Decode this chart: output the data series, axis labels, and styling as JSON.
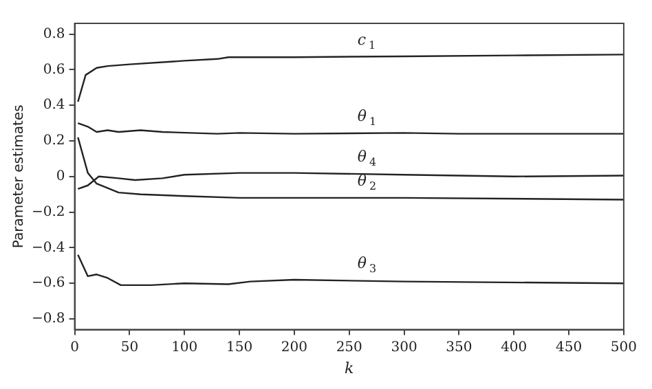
{
  "chart_data": {
    "type": "line",
    "xlabel": "k",
    "ylabel": "Parameter estimates",
    "xlim": [
      0,
      500
    ],
    "ylim": [
      -0.86,
      0.86
    ],
    "xticks": [
      0,
      50,
      100,
      150,
      200,
      250,
      300,
      350,
      400,
      450,
      500
    ],
    "yticks": [
      -0.8,
      -0.6,
      -0.4,
      -0.2,
      0,
      0.2,
      0.4,
      0.6,
      0.8
    ],
    "grid": false,
    "legend": false,
    "marker": "none",
    "line_style": "solid",
    "series": [
      {
        "name": "c$_{1}$",
        "color": "#222222",
        "x": [
          3,
          10,
          20,
          30,
          50,
          100,
          130,
          140,
          200,
          300,
          400,
          500
        ],
        "values": [
          0.42,
          0.57,
          0.61,
          0.62,
          0.63,
          0.65,
          0.66,
          0.67,
          0.67,
          0.675,
          0.68,
          0.685
        ]
      },
      {
        "name": "θ$_{1}$",
        "color": "#222222",
        "x": [
          3,
          12,
          20,
          30,
          40,
          60,
          80,
          130,
          150,
          200,
          300,
          350,
          500
        ],
        "values": [
          0.3,
          0.28,
          0.25,
          0.26,
          0.25,
          0.26,
          0.25,
          0.24,
          0.245,
          0.24,
          0.245,
          0.24,
          0.24
        ]
      },
      {
        "name": "θ$_{4}$",
        "color": "#222222",
        "x": [
          3,
          12,
          22,
          40,
          55,
          80,
          100,
          150,
          200,
          300,
          400,
          500
        ],
        "values": [
          -0.07,
          -0.05,
          0,
          -0.01,
          -0.02,
          -0.01,
          0.01,
          0.02,
          0.02,
          0.01,
          0,
          0.005
        ]
      },
      {
        "name": "θ$_{2}$",
        "color": "#222222",
        "x": [
          3,
          12,
          20,
          40,
          60,
          100,
          150,
          300,
          500
        ],
        "values": [
          0.22,
          0.02,
          -0.04,
          -0.09,
          -0.1,
          -0.11,
          -0.12,
          -0.12,
          -0.13
        ]
      },
      {
        "name": "θ$_{3}$",
        "color": "#222222",
        "x": [
          3,
          12,
          20,
          30,
          42,
          70,
          100,
          140,
          160,
          200,
          300,
          500
        ],
        "values": [
          -0.44,
          -0.56,
          -0.55,
          -0.57,
          -0.61,
          -0.61,
          -0.6,
          -0.605,
          -0.59,
          -0.58,
          -0.59,
          -0.6
        ]
      }
    ]
  }
}
